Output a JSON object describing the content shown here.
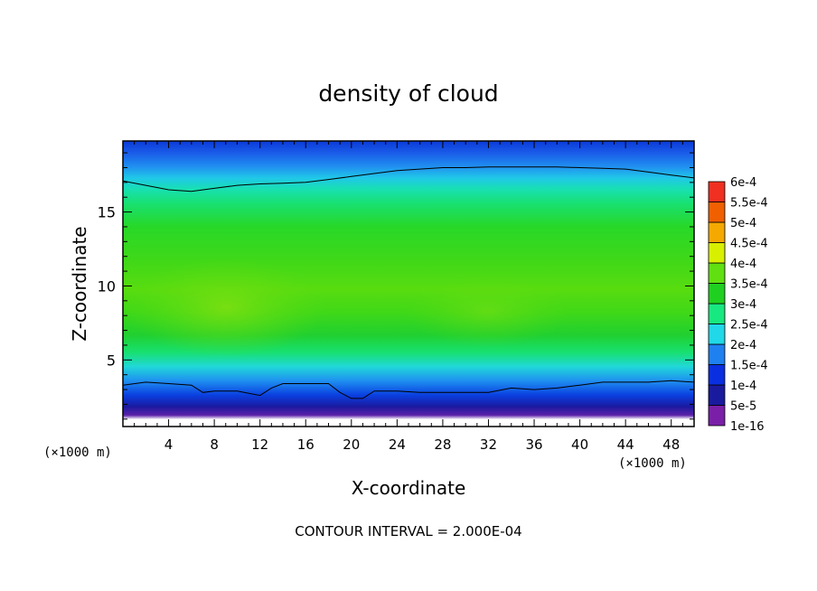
{
  "chart_data": {
    "type": "heatmap",
    "title": "density of cloud",
    "xlabel": "X-coordinate",
    "ylabel": "Z-coordinate",
    "x_unit_left": "(×1000 m)",
    "x_unit_right": "(×1000 m)",
    "footer": "CONTOUR INTERVAL = 2.000E-04",
    "xlim": [
      0,
      50
    ],
    "ylim": [
      0.5,
      19.8
    ],
    "x_ticks": [
      4,
      8,
      12,
      16,
      20,
      24,
      28,
      32,
      36,
      40,
      44,
      48
    ],
    "x_tick_labels": [
      "4",
      "8",
      "12",
      "16",
      "20",
      "24",
      "28",
      "32",
      "36",
      "40",
      "44",
      "48"
    ],
    "y_ticks": [
      5,
      10,
      15
    ],
    "y_tick_labels": [
      "5",
      "10",
      "15"
    ],
    "colorbar": {
      "labels": [
        "1e-16",
        "5e-5",
        "1e-4",
        "1.5e-4",
        "2e-4",
        "2.5e-4",
        "3e-4",
        "3.5e-4",
        "4e-4",
        "4.5e-4",
        "5e-4",
        "5.5e-4",
        "6e-4"
      ],
      "colors": [
        "#7a1fa8",
        "#1a1a9e",
        "#0a2fe0",
        "#1f80f0",
        "#20d8e8",
        "#18e880",
        "#20d020",
        "#60e010",
        "#d8f000",
        "#f5a800",
        "#f06000",
        "#f03020",
        "#f08080"
      ]
    },
    "contour_lines": [
      {
        "level": "1e-4",
        "x": [
          0,
          2,
          4,
          6,
          8,
          10,
          12,
          14,
          16,
          18,
          20,
          22,
          24,
          26,
          28,
          30,
          32,
          34,
          36,
          38,
          40,
          42,
          44,
          46,
          48,
          50
        ],
        "z": [
          17.1,
          16.8,
          16.5,
          16.4,
          16.6,
          16.8,
          16.9,
          16.95,
          17.0,
          17.2,
          17.4,
          17.6,
          17.8,
          17.9,
          18.0,
          18.0,
          18.05,
          18.05,
          18.05,
          18.05,
          18.0,
          17.95,
          17.9,
          17.7,
          17.5,
          17.3
        ]
      },
      {
        "level": "1e-4",
        "x": [
          0,
          2,
          4,
          6,
          7,
          8,
          10,
          12,
          13,
          14,
          16,
          18,
          19,
          20,
          21,
          22,
          24,
          26,
          28,
          30,
          32,
          34,
          36,
          38,
          40,
          42,
          44,
          46,
          48,
          50
        ],
        "z": [
          3.3,
          3.5,
          3.4,
          3.3,
          2.8,
          2.9,
          2.9,
          2.6,
          3.1,
          3.4,
          3.4,
          3.4,
          2.8,
          2.4,
          2.4,
          2.9,
          2.9,
          2.8,
          2.8,
          2.8,
          2.8,
          3.1,
          3.0,
          3.1,
          3.3,
          3.5,
          3.5,
          3.5,
          3.6,
          3.5
        ]
      }
    ],
    "grid": false,
    "legend": "right"
  }
}
